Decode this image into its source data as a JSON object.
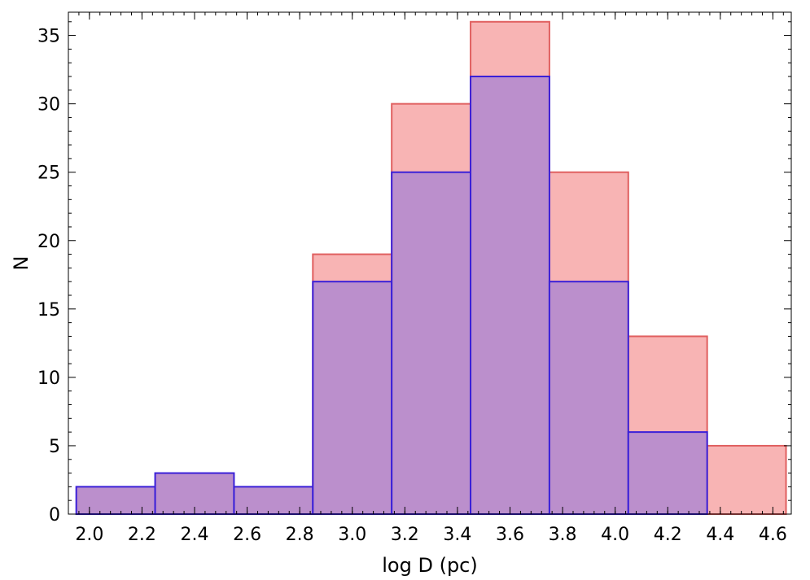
{
  "chart_data": {
    "type": "bar",
    "xlabel": "log D (pc)",
    "ylabel": "N",
    "xlim": [
      1.92,
      4.67
    ],
    "ylim": [
      0,
      36.7
    ],
    "bin_edges": [
      1.95,
      2.25,
      2.55,
      2.85,
      3.15,
      3.45,
      3.75,
      4.05,
      4.35,
      4.65
    ],
    "x_ticks": [
      "2.0",
      "2.2",
      "2.4",
      "2.6",
      "2.8",
      "3.0",
      "3.2",
      "3.4",
      "3.6",
      "3.8",
      "4.0",
      "4.2",
      "4.4",
      "4.6"
    ],
    "y_ticks": [
      "0",
      "5",
      "10",
      "15",
      "20",
      "25",
      "30",
      "35"
    ],
    "grid": false,
    "series": [
      {
        "values": [
          0,
          0,
          0,
          19,
          30,
          36,
          25,
          13,
          5
        ],
        "fill": "#f8b4b4",
        "edge": "#e06060"
      },
      {
        "values": [
          2,
          3,
          2,
          17,
          25,
          32,
          17,
          6,
          0
        ],
        "fill": "#bb8fcc",
        "edge": "#3a20d8"
      }
    ]
  }
}
